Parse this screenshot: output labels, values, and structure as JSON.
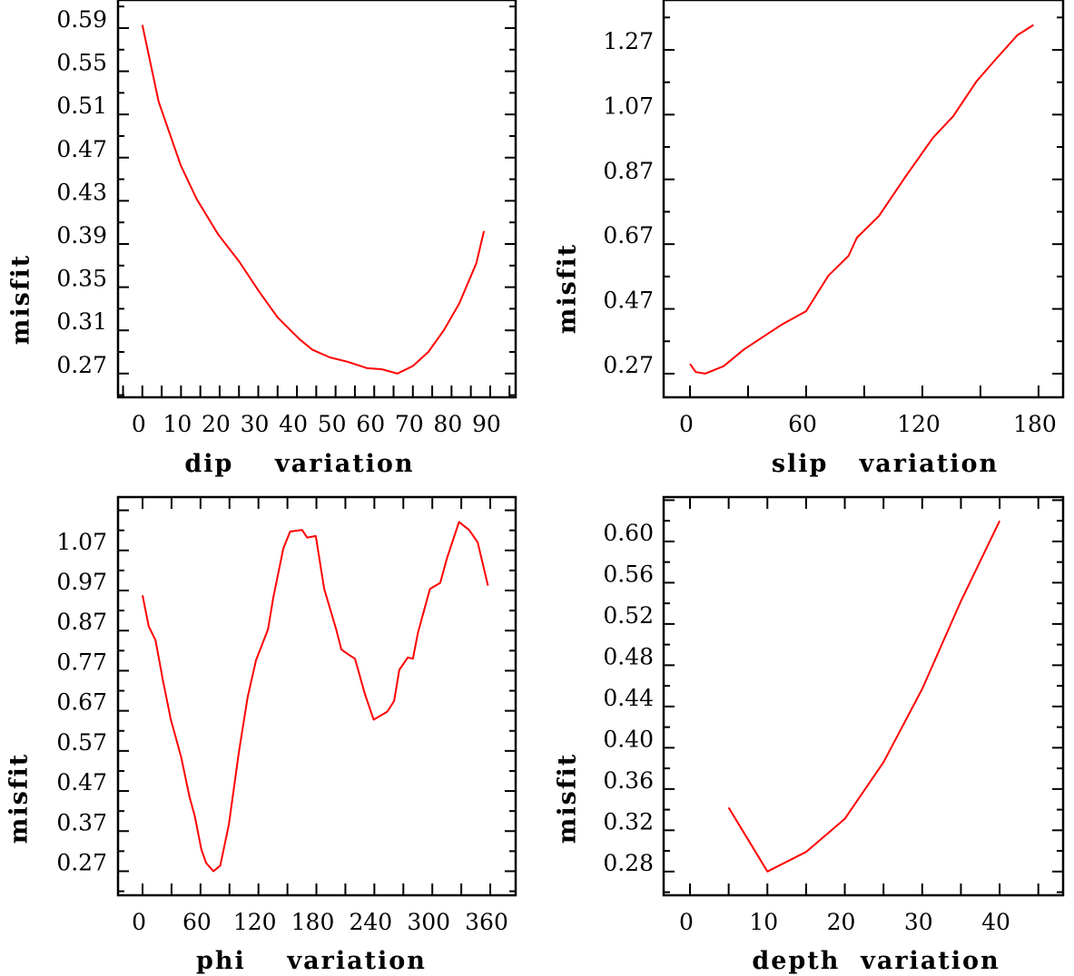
{
  "chart_data": [
    {
      "type": "line",
      "xlabel": "dip    variation",
      "ylabel": "misfit",
      "xlim": [
        -6.3,
        96.6
      ],
      "ylim": [
        0.248,
        0.616
      ],
      "x_ticks_minor_step": 5,
      "x_tick_labels": [
        "0",
        "10",
        "20",
        "30",
        "40",
        "50",
        "60",
        "70",
        "80",
        "90"
      ],
      "x_tick_values": [
        0,
        10,
        20,
        30,
        40,
        50,
        60,
        70,
        80,
        90
      ],
      "y_tick_labels": [
        "0.27",
        "0.31",
        "0.35",
        "0.39",
        "0.43",
        "0.47",
        "0.51",
        "0.55",
        "0.59"
      ],
      "y_tick_values": [
        0.27,
        0.31,
        0.35,
        0.39,
        0.43,
        0.47,
        0.51,
        0.55,
        0.59
      ],
      "y_minor_step": 0.02,
      "series": [
        {
          "name": "dip",
          "color": "#ff0000",
          "x": [
            0,
            4.2,
            9.9,
            14,
            19.6,
            25,
            30.2,
            35,
            40.6,
            44,
            48.5,
            53,
            58.2,
            62,
            66,
            70,
            74,
            78,
            82,
            86.4,
            88.4
          ],
          "y": [
            0.593,
            0.522,
            0.463,
            0.432,
            0.399,
            0.374,
            0.346,
            0.322,
            0.302,
            0.292,
            0.285,
            0.281,
            0.275,
            0.274,
            0.27,
            0.277,
            0.29,
            0.31,
            0.335,
            0.372,
            0.402
          ]
        }
      ]
    },
    {
      "type": "line",
      "xlabel": "slip   variation",
      "ylabel": "misfit",
      "xlim": [
        -13.6,
        192.7
      ],
      "ylim": [
        0.197,
        1.424
      ],
      "x_ticks_minor_step": 30,
      "x_tick_labels": [
        "0",
        "60",
        "120",
        "180"
      ],
      "x_tick_values": [
        0,
        60,
        120,
        180
      ],
      "y_tick_labels": [
        "0.27",
        "0.47",
        "0.67",
        "0.87",
        "1.07",
        "1.27"
      ],
      "y_tick_values": [
        0.27,
        0.47,
        0.67,
        0.87,
        1.07,
        1.27
      ],
      "y_minor_step": 0.1,
      "series": [
        {
          "name": "slip",
          "color": "#ff0000",
          "x": [
            0,
            3,
            7.8,
            17.4,
            27.9,
            47,
            60,
            71.4,
            81.9,
            86.2,
            97.6,
            111.5,
            125.4,
            135.9,
            148,
            158.5,
            169,
            177.4
          ],
          "y": [
            0.3,
            0.275,
            0.27,
            0.293,
            0.345,
            0.42,
            0.463,
            0.572,
            0.634,
            0.69,
            0.757,
            0.88,
            0.998,
            1.065,
            1.173,
            1.245,
            1.315,
            1.347
          ]
        }
      ]
    },
    {
      "type": "line",
      "xlabel": "phi    variation",
      "ylabel": "misfit",
      "xlim": [
        -25.4,
        386.3
      ],
      "ylim": [
        0.21,
        1.203
      ],
      "x_ticks_minor_step": 30,
      "x_tick_labels": [
        "0",
        "60",
        "120",
        "180",
        "240",
        "300",
        "360"
      ],
      "x_tick_values": [
        0,
        60,
        120,
        180,
        240,
        300,
        360
      ],
      "y_tick_labels": [
        "0.27",
        "0.37",
        "0.47",
        "0.57",
        "0.67",
        "0.77",
        "0.87",
        "0.97",
        "1.07"
      ],
      "y_tick_values": [
        0.27,
        0.37,
        0.47,
        0.57,
        0.67,
        0.77,
        0.87,
        0.97,
        1.07
      ],
      "y_minor_step": 0.05,
      "series": [
        {
          "name": "phi",
          "color": "#ff0000",
          "x": [
            0,
            6.4,
            13.4,
            20.8,
            29.3,
            39.9,
            48.7,
            54,
            61,
            66,
            73.4,
            80.4,
            89.3,
            100,
            108.7,
            117.5,
            129.9,
            135.2,
            145.8,
            152.8,
            165.2,
            170.5,
            179.3,
            188.1,
            200.5,
            205.8,
            212.8,
            219.9,
            230.5,
            239.3,
            253.5,
            260.5,
            265.8,
            274.6,
            279.9,
            285.2,
            297.6,
            308.2,
            315.2,
            327.6,
            338.2,
            347,
            357.6
          ],
          "y": [
            0.958,
            0.881,
            0.846,
            0.749,
            0.648,
            0.555,
            0.455,
            0.408,
            0.323,
            0.29,
            0.27,
            0.284,
            0.385,
            0.571,
            0.703,
            0.796,
            0.873,
            0.951,
            1.075,
            1.117,
            1.121,
            1.102,
            1.106,
            0.974,
            0.873,
            0.823,
            0.811,
            0.8,
            0.71,
            0.648,
            0.668,
            0.695,
            0.772,
            0.803,
            0.8,
            0.865,
            0.974,
            0.989,
            1.051,
            1.141,
            1.121,
            1.09,
            0.982
          ]
        }
      ]
    },
    {
      "type": "line",
      "xlabel": "depth  variation",
      "ylabel": "misfit",
      "xlim": [
        -3.4,
        48.2
      ],
      "ylim": [
        0.257,
        0.643
      ],
      "x_ticks_minor_step": 5,
      "x_tick_labels": [
        "0",
        "10",
        "20",
        "30",
        "40"
      ],
      "x_tick_values": [
        0,
        10,
        20,
        30,
        40
      ],
      "y_tick_labels": [
        "0.28",
        "0.32",
        "0.36",
        "0.40",
        "0.44",
        "0.48",
        "0.52",
        "0.56",
        "0.60"
      ],
      "y_tick_values": [
        0.28,
        0.32,
        0.36,
        0.4,
        0.44,
        0.48,
        0.52,
        0.56,
        0.6
      ],
      "y_minor_step": 0.02,
      "series": [
        {
          "name": "depth",
          "color": "#ff0000",
          "x": [
            5,
            10,
            15,
            20,
            25,
            30,
            35,
            40
          ],
          "y": [
            0.342,
            0.28,
            0.299,
            0.331,
            0.386,
            0.457,
            0.542,
            0.62
          ]
        }
      ]
    }
  ]
}
